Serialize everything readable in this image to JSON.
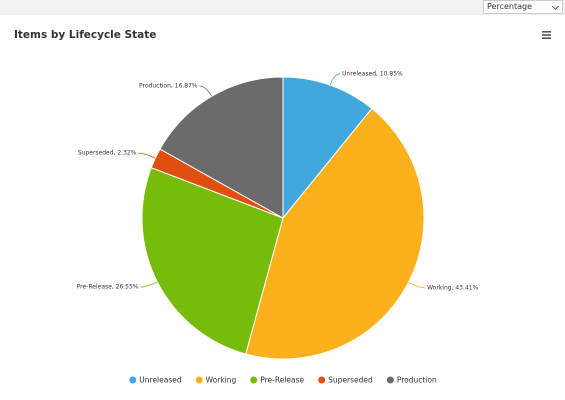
{
  "toolbar": {
    "selected": "Percentage"
  },
  "chart_data": {
    "type": "pie",
    "title": "Items by Lifecycle State",
    "categories": [
      "Unreleased",
      "Working",
      "Pre-Release",
      "Superseded",
      "Production"
    ],
    "values": [
      10.85,
      43.41,
      26.55,
      2.32,
      16.87
    ],
    "value_labels": [
      "Unreleased, 10.85%",
      "Working, 43.41%",
      "Pre-Release, 26.55%",
      "Superseded, 2.32%",
      "Production, 16.87%"
    ],
    "colors": [
      "#41a8de",
      "#fbb01c",
      "#77bc0a",
      "#e04f0d",
      "#6b6b6b"
    ],
    "legend": "bottom"
  }
}
